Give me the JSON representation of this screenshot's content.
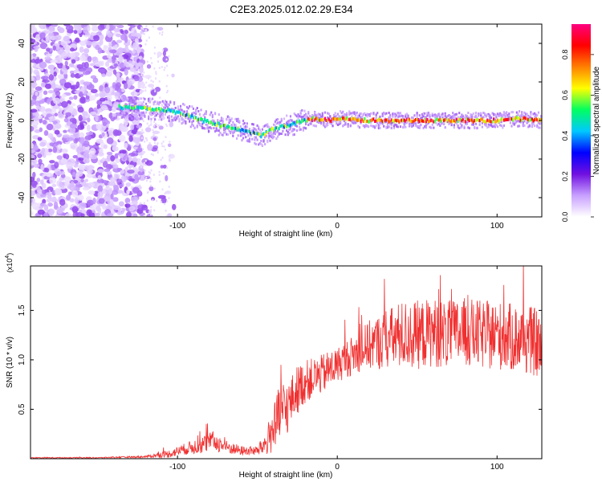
{
  "title": "C2E3.2025.012.02.29.E34",
  "chart_data": [
    {
      "type": "heatmap",
      "xlabel": "Height of straight line (km)",
      "ylabel": "Frequency (Hz)",
      "xlim": [
        -192,
        128
      ],
      "ylim": [
        -50,
        50
      ],
      "xticks": [
        -100,
        0,
        100
      ],
      "yticks": [
        -40,
        -20,
        0,
        20,
        40
      ],
      "colorbar": {
        "label": "Normalized spectral amplitude",
        "range": [
          0,
          0.95
        ],
        "ticks": [
          0.0,
          0.2,
          0.4,
          0.6,
          0.8
        ],
        "colors": [
          "#ffffff",
          "#c8a0ff",
          "#7010e0",
          "#0000ff",
          "#00c8ff",
          "#00ff60",
          "#ffff00",
          "#ff8000",
          "#ff0000",
          "#ff0080"
        ]
      },
      "ridge": {
        "x": [
          -137,
          -120,
          -105,
          -95,
          -85,
          -75,
          -65,
          -55,
          -48,
          -42,
          -35,
          -28,
          -22,
          -15,
          -5,
          0,
          20,
          40,
          60,
          80,
          100,
          110,
          128
        ],
        "freq": [
          7,
          6,
          5,
          3,
          0,
          -2,
          -4,
          -6,
          -8,
          -5,
          -3,
          -2,
          0,
          1,
          0,
          1,
          0,
          0,
          0,
          0,
          0,
          1,
          0
        ]
      }
    },
    {
      "type": "line",
      "xlabel": "Height of straight line (km)",
      "ylabel": "SNR (10 * v/v)",
      "y_multiplier": "(x10^4)",
      "xlim": [
        -192,
        128
      ],
      "ylim": [
        0,
        1.95
      ],
      "xticks": [
        -100,
        0,
        100
      ],
      "yticks": [
        0.5,
        1.0,
        1.5
      ],
      "ytick_labels": [
        "0.5",
        "1.0",
        "1.5"
      ],
      "color": "#f03030",
      "envelope": {
        "x": [
          -192,
          -150,
          -120,
          -105,
          -95,
          -85,
          -78,
          -70,
          -60,
          -50,
          -45,
          -40,
          -35,
          -30,
          -25,
          -20,
          -15,
          -10,
          -5,
          0,
          10,
          20,
          30,
          40,
          50,
          60,
          70,
          80,
          90,
          100,
          110,
          120,
          128
        ],
        "mean": [
          0.01,
          0.01,
          0.02,
          0.05,
          0.1,
          0.14,
          0.18,
          0.12,
          0.08,
          0.08,
          0.15,
          0.3,
          0.45,
          0.55,
          0.7,
          0.78,
          0.82,
          0.85,
          0.9,
          0.95,
          1.05,
          1.15,
          1.2,
          1.25,
          1.25,
          1.28,
          1.25,
          1.28,
          1.25,
          1.25,
          1.22,
          1.2,
          1.15
        ],
        "noise": [
          0.005,
          0.005,
          0.01,
          0.04,
          0.06,
          0.09,
          0.1,
          0.07,
          0.05,
          0.05,
          0.12,
          0.25,
          0.35,
          0.25,
          0.25,
          0.22,
          0.2,
          0.2,
          0.2,
          0.18,
          0.2,
          0.25,
          0.3,
          0.35,
          0.35,
          0.35,
          0.35,
          0.35,
          0.35,
          0.35,
          0.35,
          0.35,
          0.35
        ]
      }
    }
  ]
}
